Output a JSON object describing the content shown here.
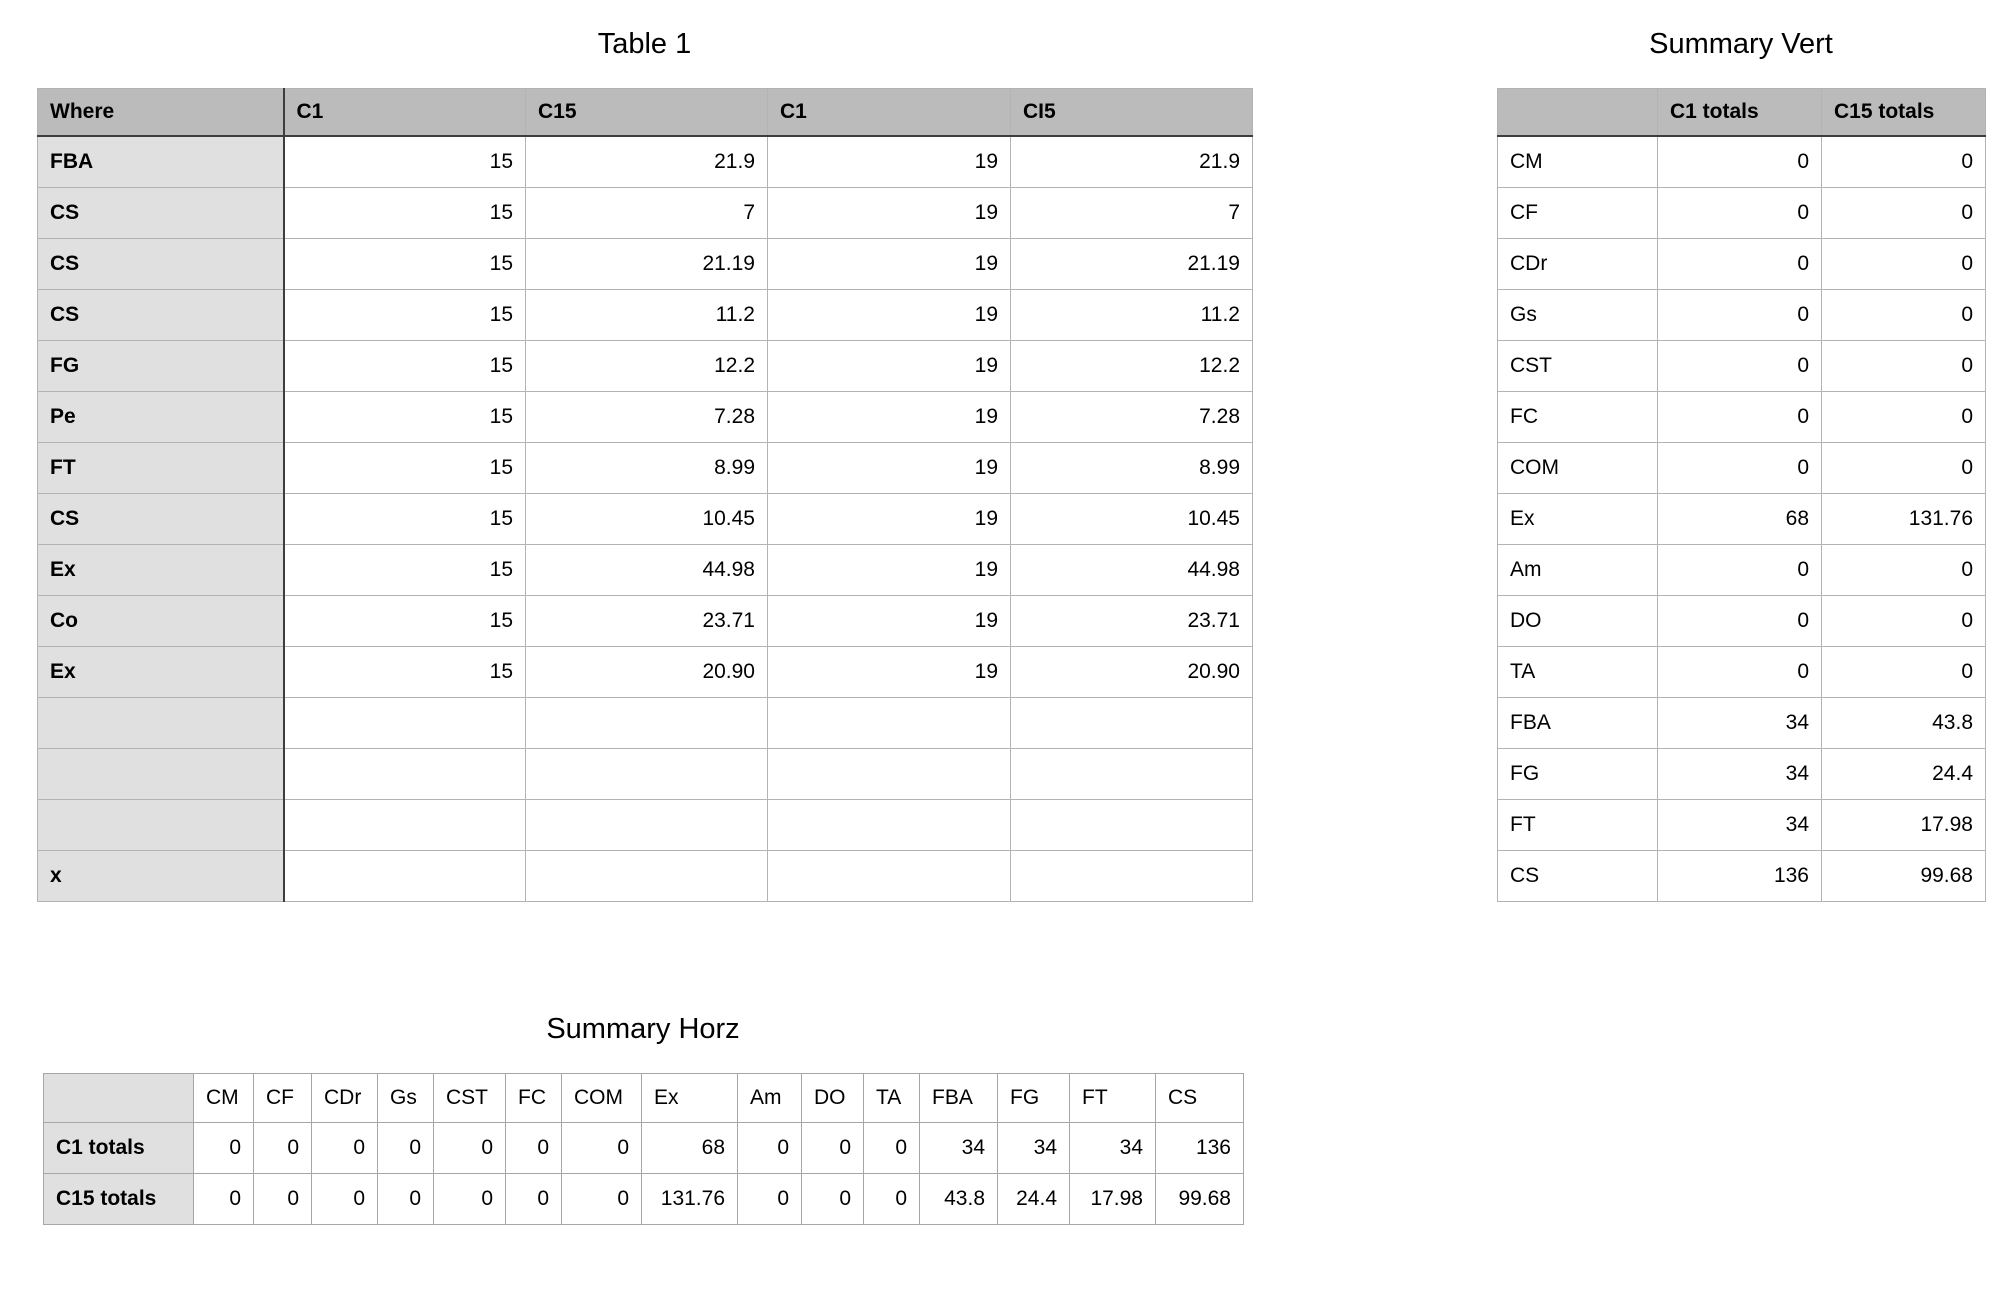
{
  "colors": {
    "header_gray": "#bbbbbb",
    "label_gray": "#e0e0e0",
    "grid_light": "#b3b3b3",
    "grid_dark": "#3d3d3d",
    "background": "#ffffff"
  },
  "table1": {
    "title": "Table 1",
    "columns": [
      "Where",
      "C1",
      "C15",
      "C1",
      "CI5"
    ],
    "rows": [
      {
        "label": "FBA",
        "values": [
          "15",
          "21.9",
          "19",
          "21.9"
        ]
      },
      {
        "label": "CS",
        "values": [
          "15",
          "7",
          "19",
          "7"
        ]
      },
      {
        "label": "CS",
        "values": [
          "15",
          "21.19",
          "19",
          "21.19"
        ]
      },
      {
        "label": "CS",
        "values": [
          "15",
          "11.2",
          "19",
          "11.2"
        ]
      },
      {
        "label": "FG",
        "values": [
          "15",
          "12.2",
          "19",
          "12.2"
        ]
      },
      {
        "label": "Pe",
        "values": [
          "15",
          "7.28",
          "19",
          "7.28"
        ]
      },
      {
        "label": "FT",
        "values": [
          "15",
          "8.99",
          "19",
          "8.99"
        ]
      },
      {
        "label": "CS",
        "values": [
          "15",
          "10.45",
          "19",
          "10.45"
        ]
      },
      {
        "label": "Ex",
        "values": [
          "15",
          "44.98",
          "19",
          "44.98"
        ]
      },
      {
        "label": "Co",
        "values": [
          "15",
          "23.71",
          "19",
          "23.71"
        ]
      },
      {
        "label": "Ex",
        "values": [
          "15",
          "20.90",
          "19",
          "20.90"
        ]
      },
      {
        "label": "",
        "values": [
          "",
          "",
          "",
          ""
        ]
      },
      {
        "label": "",
        "values": [
          "",
          "",
          "",
          ""
        ]
      },
      {
        "label": "",
        "values": [
          "",
          "",
          "",
          ""
        ]
      },
      {
        "label": "x",
        "values": [
          "",
          "",
          "",
          ""
        ]
      }
    ]
  },
  "summary_vert": {
    "title": "Summary Vert",
    "columns": [
      "",
      "C1 totals",
      "C15 totals"
    ],
    "rows": [
      {
        "label": "CM",
        "values": [
          "0",
          "0"
        ]
      },
      {
        "label": "CF",
        "values": [
          "0",
          "0"
        ]
      },
      {
        "label": "CDr",
        "values": [
          "0",
          "0"
        ]
      },
      {
        "label": "Gs",
        "values": [
          "0",
          "0"
        ]
      },
      {
        "label": "CST",
        "values": [
          "0",
          "0"
        ]
      },
      {
        "label": "FC",
        "values": [
          "0",
          "0"
        ]
      },
      {
        "label": "COM",
        "values": [
          "0",
          "0"
        ]
      },
      {
        "label": "Ex",
        "values": [
          "68",
          "131.76"
        ]
      },
      {
        "label": "Am",
        "values": [
          "0",
          "0"
        ]
      },
      {
        "label": "DO",
        "values": [
          "0",
          "0"
        ]
      },
      {
        "label": "TA",
        "values": [
          "0",
          "0"
        ]
      },
      {
        "label": "FBA",
        "values": [
          "34",
          "43.8"
        ]
      },
      {
        "label": "FG",
        "values": [
          "34",
          "24.4"
        ]
      },
      {
        "label": "FT",
        "values": [
          "34",
          "17.98"
        ]
      },
      {
        "label": "CS",
        "values": [
          "136",
          "99.68"
        ]
      }
    ]
  },
  "summary_horz": {
    "title": "Summary Horz",
    "columns": [
      "",
      "CM",
      "CF",
      "CDr",
      "Gs",
      "CST",
      "FC",
      "COM",
      "Ex",
      "Am",
      "DO",
      "TA",
      "FBA",
      "FG",
      "FT",
      "CS"
    ],
    "rows": [
      {
        "label": "C1 totals",
        "values": [
          "0",
          "0",
          "0",
          "0",
          "0",
          "0",
          "0",
          "68",
          "0",
          "0",
          "0",
          "34",
          "34",
          "34",
          "136"
        ]
      },
      {
        "label": "C15 totals",
        "values": [
          "0",
          "0",
          "0",
          "0",
          "0",
          "0",
          "0",
          "131.76",
          "0",
          "0",
          "0",
          "43.8",
          "24.4",
          "17.98",
          "99.68"
        ]
      }
    ]
  }
}
